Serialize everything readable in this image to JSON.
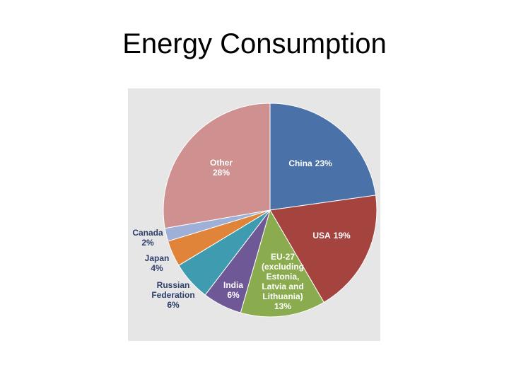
{
  "chart_data": {
    "type": "pie",
    "title": "Energy Consumption",
    "categories": [
      "China",
      "USA",
      "EU-27 (excluding Estonia, Latvia and Lithuania)",
      "India",
      "Russian Federation",
      "Japan",
      "Canada",
      "Other"
    ],
    "values": [
      23,
      19,
      13,
      6,
      6,
      4,
      2,
      28
    ],
    "value_labels": [
      "23%",
      "19%",
      "13%",
      "6%",
      "6%",
      "4%",
      "2%",
      "28%"
    ],
    "colors": [
      "#4a72a8",
      "#a5443f",
      "#8aac4f",
      "#6e5896",
      "#3e9bb0",
      "#e0843a",
      "#9fb0d8",
      "#cf9090"
    ]
  }
}
